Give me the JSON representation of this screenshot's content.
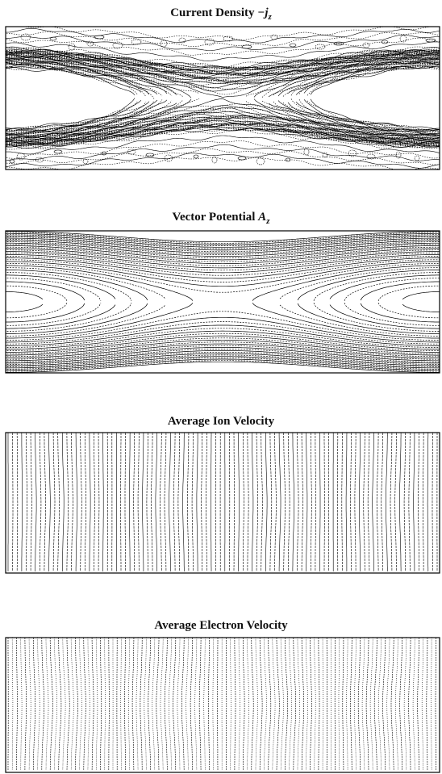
{
  "panels": [
    {
      "title": "Current Density",
      "symbol": "−j",
      "subscript": "z"
    },
    {
      "title": "Vector Potential",
      "symbol": "A",
      "subscript": "z"
    },
    {
      "title": "Average Ion Velocity"
    },
    {
      "title": "Average Electron Velocity"
    }
  ]
}
